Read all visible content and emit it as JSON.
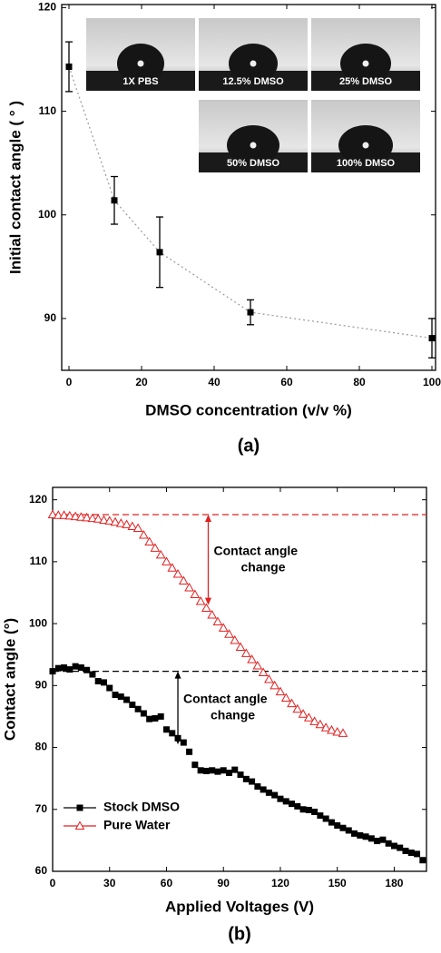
{
  "chart_data": [
    {
      "type": "scatter",
      "x_label": "DMSO concentration (v/v %)",
      "y_label": "Initial contact angle ( ° )",
      "caption": "(a)",
      "xlim": [
        -2,
        101
      ],
      "xticks": [
        0,
        20,
        40,
        60,
        80,
        100
      ],
      "ylim": [
        85,
        120.3
      ],
      "yticks": [
        90,
        100,
        110,
        120
      ],
      "insets": [
        "1X PBS",
        "12.5% DMSO",
        "25% DMSO",
        "50% DMSO",
        "100% DMSO"
      ],
      "series": [
        {
          "x": [
            0,
            12.5,
            25,
            50,
            100
          ],
          "values": [
            114.3,
            101.4,
            96.4,
            90.6,
            88.1
          ],
          "errors": [
            2.4,
            2.3,
            3.4,
            1.2,
            1.9
          ],
          "color": "#000000",
          "marker": "square",
          "linestyle": "dotted",
          "line_color": "#999999"
        }
      ]
    },
    {
      "type": "scatter",
      "x_label": "Applied Voltages (V)",
      "y_label": "Contact angle (°)",
      "caption": "(b)",
      "xlim": [
        0,
        197
      ],
      "xticks": [
        0,
        30,
        60,
        90,
        120,
        150,
        180
      ],
      "ylim": [
        60,
        122
      ],
      "yticks": [
        60,
        70,
        80,
        90,
        100,
        110,
        120
      ],
      "legend": "lower left",
      "hlines": [
        {
          "value": 117.6,
          "color": "#e02020"
        },
        {
          "value": 92.3,
          "color": "#000000"
        }
      ],
      "annotations": [
        {
          "lines": [
            "Contact angle",
            "change"
          ],
          "x": 82,
          "y1": 117.6,
          "y2": 103,
          "color": "#e02020"
        },
        {
          "lines": [
            "Contact angle",
            "change"
          ],
          "x": 66,
          "y1": 92.3,
          "y2": 80.5,
          "color": "#000000"
        }
      ],
      "series": [
        {
          "name": "Stock DMSO",
          "color": "#000000",
          "marker": "square",
          "linestyle": "none",
          "x": [
            0,
            3,
            6,
            9,
            12,
            15,
            18,
            21,
            24,
            27,
            30,
            33,
            36,
            39,
            42,
            45,
            48,
            51,
            54,
            57,
            60,
            63,
            66,
            69,
            72,
            75,
            78,
            81,
            84,
            87,
            90,
            93,
            96,
            99,
            102,
            105,
            108,
            111,
            114,
            117,
            120,
            123,
            126,
            129,
            132,
            135,
            138,
            141,
            144,
            147,
            150,
            153,
            156,
            159,
            162,
            165,
            168,
            171,
            174,
            177,
            180,
            183,
            186,
            189,
            192,
            195
          ],
          "values": [
            92.3,
            92.8,
            92.9,
            92.6,
            93.1,
            92.9,
            92.5,
            91.8,
            90.7,
            90.5,
            89.6,
            88.5,
            88.2,
            87.7,
            86.9,
            86.2,
            85.5,
            84.6,
            84.7,
            85.0,
            82.9,
            82.3,
            81.5,
            80.8,
            79.3,
            77.2,
            76.3,
            76.2,
            76.3,
            76.1,
            76.3,
            75.9,
            76.4,
            75.6,
            74.9,
            74.5,
            73.7,
            73.2,
            72.7,
            72.3,
            71.7,
            71.3,
            70.9,
            70.5,
            70.0,
            69.9,
            69.6,
            69.0,
            68.5,
            67.9,
            67.4,
            67.0,
            66.6,
            66.1,
            65.8,
            65.6,
            65.3,
            64.9,
            65.1,
            64.5,
            64.1,
            63.8,
            63.3,
            63.0,
            62.8,
            61.8
          ]
        },
        {
          "name": "Pure Water",
          "color": "#e02020",
          "marker": "triangle",
          "linestyle": "none",
          "x": [
            0,
            3,
            6,
            9,
            12,
            15,
            18,
            21,
            24,
            27,
            30,
            33,
            36,
            39,
            42,
            45,
            48,
            51,
            54,
            57,
            60,
            63,
            66,
            69,
            72,
            75,
            78,
            81,
            84,
            87,
            90,
            93,
            96,
            99,
            102,
            105,
            108,
            111,
            114,
            117,
            120,
            123,
            126,
            129,
            132,
            135,
            138,
            141,
            144,
            147,
            150,
            153
          ],
          "values": [
            117.6,
            117.5,
            117.5,
            117.4,
            117.3,
            117.2,
            117.1,
            117.0,
            116.9,
            116.7,
            116.6,
            116.4,
            116.2,
            116.0,
            115.7,
            115.4,
            114.3,
            113.2,
            112.2,
            111.1,
            110.0,
            109.0,
            108.0,
            106.9,
            105.8,
            104.7,
            103.6,
            102.5,
            101.4,
            100.3,
            99.3,
            98.3,
            97.3,
            96.2,
            95.2,
            94.2,
            93.2,
            92.1,
            91.0,
            90.0,
            89.0,
            88.0,
            87.1,
            86.2,
            85.4,
            84.8,
            84.2,
            83.7,
            83.2,
            82.8,
            82.5,
            82.3
          ]
        }
      ]
    }
  ]
}
